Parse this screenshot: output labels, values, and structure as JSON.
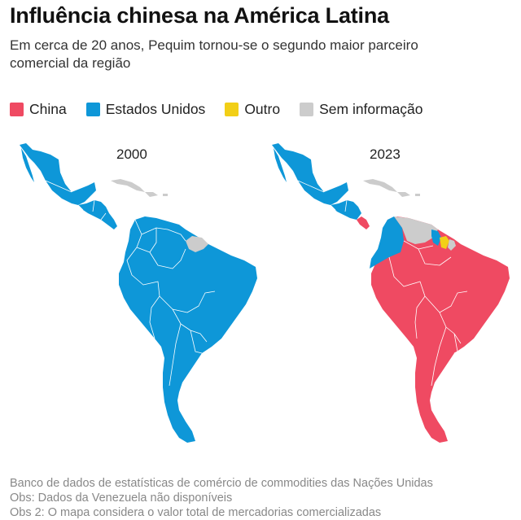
{
  "title": "Influência chinesa na América Latina",
  "subtitle": "Em cerca de 20 anos, Pequim tornou-se o segundo maior parceiro comercial da região",
  "legend": [
    {
      "label": "China",
      "color": "#ef4a62"
    },
    {
      "label": "Estados Unidos",
      "color": "#0e97d8"
    },
    {
      "label": "Outro",
      "color": "#f2cf17"
    },
    {
      "label": "Sem informação",
      "color": "#cccccc"
    }
  ],
  "maps": [
    {
      "year": "2000"
    },
    {
      "year": "2023"
    }
  ],
  "source": {
    "line1": "Banco de dados de estatísticas de comércio de commodities das Nações Unidas",
    "line2": "Obs: Dados da Venezuela não disponíveis",
    "line3": "Obs 2: O mapa considera o valor total de mercadorias comercializadas"
  }
}
